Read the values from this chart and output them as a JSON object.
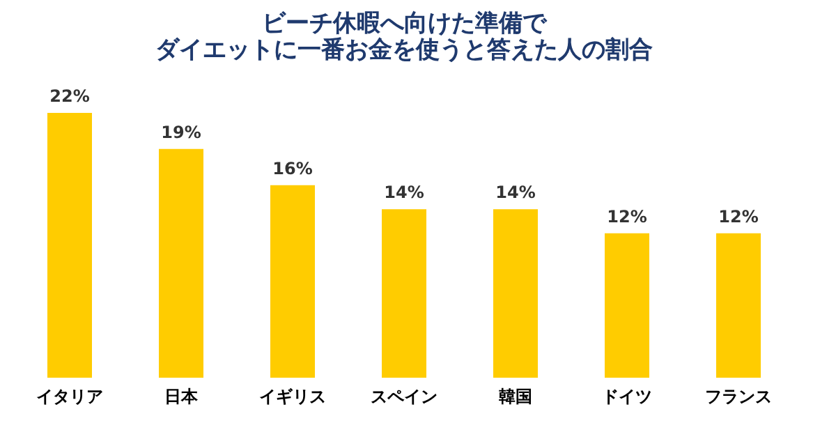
{
  "chart_data": {
    "type": "bar",
    "title": "ビーチ休暇へ向けた準備で",
    "subtitle": "ダイエットに一番お金を使うと答えた人の割合",
    "categories": [
      "イタリア",
      "日本",
      "イギリス",
      "スペイン",
      "韓国",
      "ドイツ",
      "フランス"
    ],
    "values": [
      22,
      19,
      16,
      14,
      14,
      12,
      12
    ],
    "value_labels": [
      "22%",
      "19%",
      "16%",
      "14%",
      "14%",
      "12%",
      "12%"
    ],
    "color": "#ffcc00",
    "grid": false
  }
}
